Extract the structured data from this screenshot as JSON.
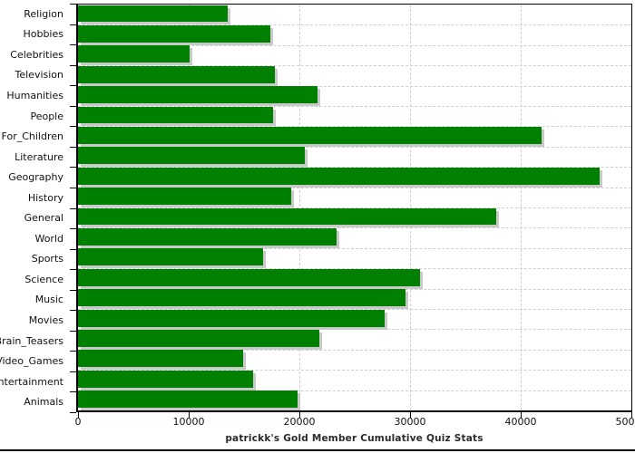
{
  "colors": {
    "bar": "#008000",
    "bar_shadow": "#c9c9c9",
    "grid": "#cfcfcf",
    "frame": "#000000",
    "text": "#111111",
    "title": "#2b2b2b"
  },
  "chart_data": {
    "type": "bar",
    "orientation": "horizontal",
    "title": "patrickk's Gold Member Cumulative Quiz Stats",
    "xlabel": "",
    "ylabel": "",
    "xlim": [
      0,
      50000
    ],
    "xticks": [
      0,
      10000,
      20000,
      30000,
      40000,
      50000
    ],
    "xtick_labels": [
      "0",
      "10000",
      "20000",
      "30000",
      "40000",
      "50000"
    ],
    "grid": true,
    "legend": false,
    "categories": [
      "Religion",
      "Hobbies",
      "Celebrities",
      "Television",
      "Humanities",
      "People",
      "For_Children",
      "Literature",
      "Geography",
      "History",
      "General",
      "World",
      "Sports",
      "Science",
      "Music",
      "Movies",
      "Brain_Teasers",
      "Video_Games",
      "Entertainment",
      "Animals"
    ],
    "values": [
      13500,
      17400,
      10100,
      17800,
      21600,
      17600,
      41900,
      20500,
      47100,
      19300,
      37800,
      23400,
      16700,
      30900,
      29600,
      27700,
      21800,
      14900,
      15800,
      19800
    ]
  }
}
